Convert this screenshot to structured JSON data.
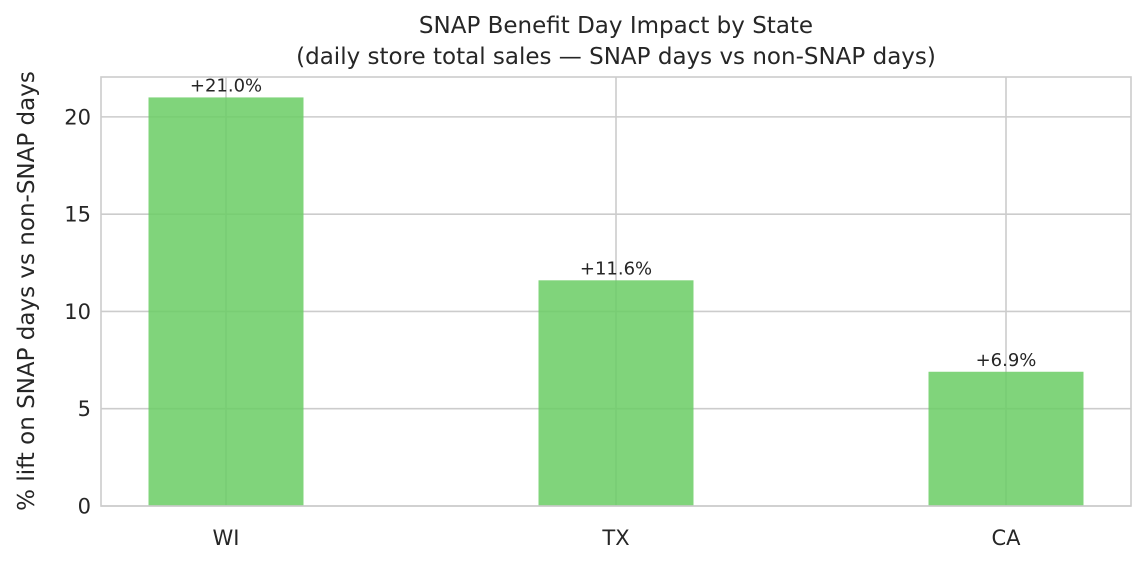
{
  "chart_data": {
    "type": "bar",
    "title": "SNAP Benefit Day Impact by State",
    "subtitle": "(daily store total sales — SNAP days vs non-SNAP days)",
    "xlabel": "",
    "ylabel": "% lift on SNAP days vs non-SNAP days",
    "categories": [
      "WI",
      "TX",
      "CA"
    ],
    "values": [
      21.0,
      11.6,
      6.9
    ],
    "data_labels": [
      "+21.0%",
      "+11.6%",
      "+6.9%"
    ],
    "ylim": [
      0,
      22.05
    ],
    "yticks": [
      0,
      5,
      10,
      15,
      20
    ],
    "grid": true,
    "bar_color": "#6acc64"
  }
}
